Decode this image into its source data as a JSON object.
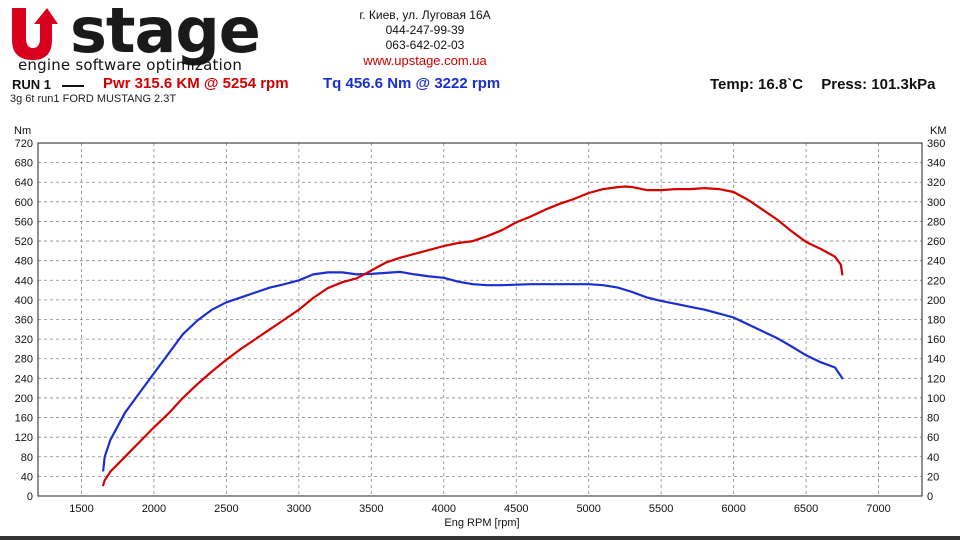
{
  "header": {
    "logo_word": "stage",
    "logo_tagline": "engine software optimization",
    "address": "г. Киев, ул. Луговая 16А",
    "phone1": "044-247-99-39",
    "phone2": "063-642-02-03",
    "website": "www.upstage.com.ua"
  },
  "run": {
    "label": "RUN 1",
    "pwr": "Pwr  315.6 KM @ 5254 rpm",
    "tq": "Tq 456.6 Nm @ 3222 rpm",
    "temp": "Temp: 16.8`C",
    "press": "Press: 101.3kPa",
    "subtitle": "3g 6t run1 FORD MUSTANG 2.3T"
  },
  "colors": {
    "power": "#d40000",
    "torque": "#1a2fd0",
    "logo_red": "#d8001c",
    "grid": "#888888"
  },
  "chart_data": {
    "type": "line",
    "xlabel": "Eng RPM [rpm]",
    "ylabel_left": "Nm",
    "ylabel_right": "KM",
    "xlim": [
      1200,
      7300
    ],
    "xticks": [
      1500,
      2000,
      2500,
      3000,
      3500,
      4000,
      4500,
      5000,
      5500,
      6000,
      6500,
      7000
    ],
    "ylim_left": [
      0,
      720
    ],
    "yticks_left": [
      0,
      40,
      80,
      120,
      160,
      200,
      240,
      280,
      320,
      360,
      400,
      440,
      480,
      520,
      560,
      600,
      640,
      680,
      720
    ],
    "ylim_right": [
      0,
      360
    ],
    "yticks_right": [
      0,
      20,
      40,
      60,
      80,
      100,
      120,
      140,
      160,
      180,
      200,
      220,
      240,
      260,
      280,
      300,
      320,
      340,
      360
    ],
    "grid": true,
    "series": [
      {
        "key": "torque",
        "axis": "left",
        "x": [
          1650,
          1660,
          1700,
          1800,
          1900,
          2000,
          2100,
          2200,
          2300,
          2400,
          2500,
          2600,
          2700,
          2800,
          2900,
          3000,
          3100,
          3200,
          3300,
          3400,
          3500,
          3600,
          3700,
          3800,
          3900,
          4000,
          4100,
          4200,
          4300,
          4400,
          4500,
          4600,
          4700,
          4800,
          4900,
          5000,
          5100,
          5200,
          5300,
          5400,
          5500,
          5600,
          5700,
          5800,
          5900,
          6000,
          6100,
          6200,
          6300,
          6400,
          6500,
          6600,
          6700,
          6750
        ],
        "y": [
          52,
          80,
          115,
          170,
          210,
          250,
          290,
          330,
          358,
          380,
          395,
          405,
          415,
          425,
          432,
          440,
          452,
          456,
          456,
          452,
          453,
          455,
          457,
          452,
          448,
          445,
          437,
          432,
          430,
          430,
          431,
          432,
          432,
          432,
          432,
          432,
          430,
          425,
          416,
          405,
          398,
          392,
          386,
          380,
          372,
          364,
          350,
          336,
          322,
          305,
          287,
          273,
          262,
          240
        ]
      },
      {
        "key": "power",
        "axis": "right",
        "x": [
          1650,
          1660,
          1700,
          1800,
          1900,
          2000,
          2100,
          2200,
          2300,
          2400,
          2500,
          2600,
          2700,
          2800,
          2900,
          3000,
          3100,
          3200,
          3300,
          3400,
          3500,
          3600,
          3700,
          3800,
          3900,
          4000,
          4100,
          4200,
          4300,
          4400,
          4500,
          4600,
          4700,
          4800,
          4900,
          5000,
          5100,
          5200,
          5254,
          5300,
          5400,
          5500,
          5600,
          5700,
          5800,
          5900,
          6000,
          6100,
          6200,
          6300,
          6400,
          6500,
          6600,
          6700,
          6740,
          6750
        ],
        "y": [
          11,
          16,
          25,
          40,
          55,
          70,
          84,
          100,
          114,
          127,
          139,
          150,
          160,
          170,
          180,
          190,
          202,
          212,
          218,
          222,
          230,
          238,
          243,
          247,
          251,
          255,
          258,
          260,
          265,
          271,
          279,
          285,
          292,
          298,
          303,
          309,
          313,
          315,
          315.6,
          315,
          312,
          312,
          313,
          313,
          314,
          313,
          310,
          302,
          292,
          282,
          270,
          259,
          252,
          244,
          236,
          226
        ]
      }
    ]
  }
}
